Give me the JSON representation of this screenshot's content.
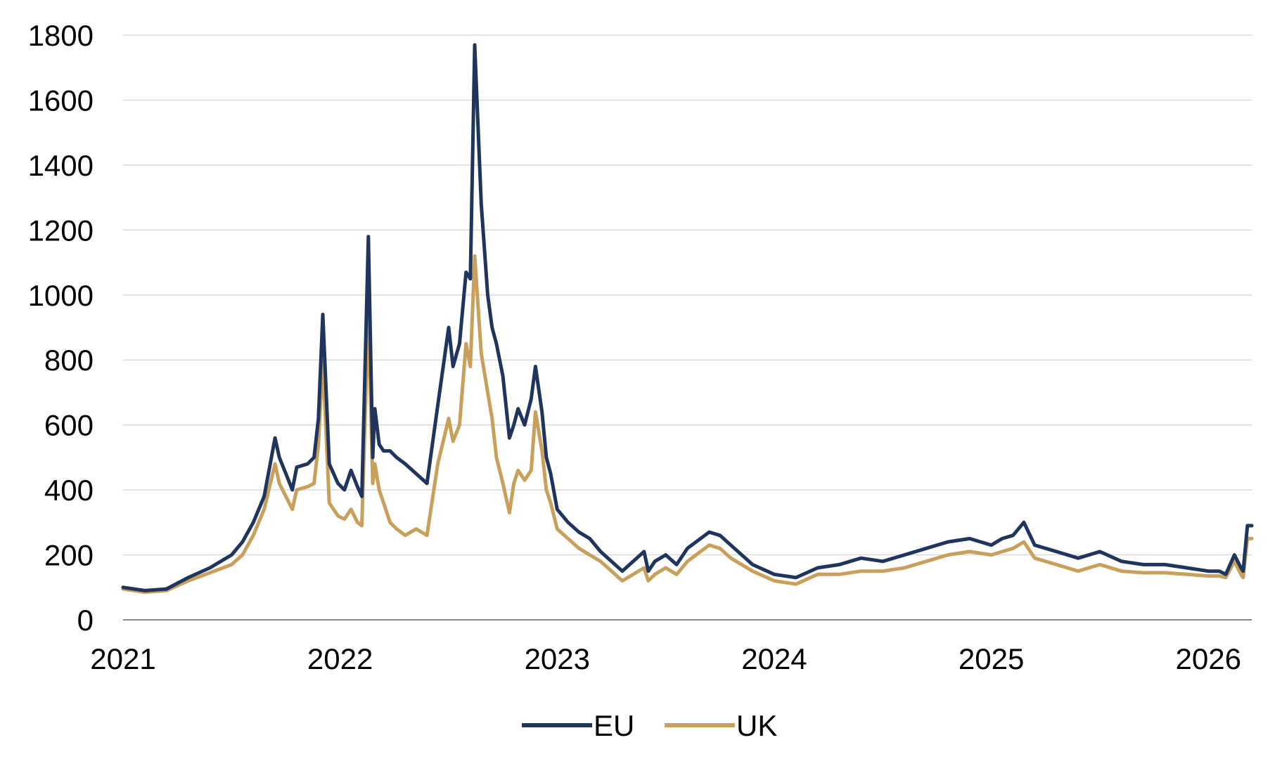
{
  "chart_data": {
    "type": "line",
    "title": "",
    "xlabel": "",
    "ylabel": "",
    "xlim": [
      2021.0,
      2026.2
    ],
    "ylim": [
      0,
      1800
    ],
    "x_ticks": [
      "2021",
      "2022",
      "2023",
      "2024",
      "2025",
      "2026"
    ],
    "y_ticks": [
      "0",
      "200",
      "400",
      "600",
      "800",
      "1000",
      "1200",
      "1400",
      "1600",
      "1800"
    ],
    "grid": true,
    "legend_position": "bottom",
    "x": [
      2021.0,
      2021.1,
      2021.2,
      2021.3,
      2021.4,
      2021.5,
      2021.55,
      2021.6,
      2021.65,
      2021.7,
      2021.72,
      2021.75,
      2021.78,
      2021.8,
      2021.85,
      2021.88,
      2021.9,
      2021.92,
      2021.95,
      2021.97,
      2021.99,
      2022.02,
      2022.05,
      2022.08,
      2022.1,
      2022.13,
      2022.15,
      2022.16,
      2022.18,
      2022.2,
      2022.23,
      2022.26,
      2022.3,
      2022.35,
      2022.4,
      2022.45,
      2022.5,
      2022.52,
      2022.55,
      2022.58,
      2022.6,
      2022.62,
      2022.65,
      2022.68,
      2022.7,
      2022.72,
      2022.75,
      2022.78,
      2022.8,
      2022.82,
      2022.85,
      2022.88,
      2022.9,
      2022.93,
      2022.95,
      2022.97,
      2023.0,
      2023.05,
      2023.1,
      2023.15,
      2023.2,
      2023.3,
      2023.4,
      2023.42,
      2023.45,
      2023.5,
      2023.55,
      2023.6,
      2023.7,
      2023.75,
      2023.8,
      2023.9,
      2024.0,
      2024.1,
      2024.2,
      2024.3,
      2024.4,
      2024.5,
      2024.6,
      2024.7,
      2024.8,
      2024.9,
      2025.0,
      2025.05,
      2025.1,
      2025.15,
      2025.2,
      2025.3,
      2025.4,
      2025.45,
      2025.5,
      2025.6,
      2025.7,
      2025.8,
      2025.9,
      2026.0,
      2026.05,
      2026.08,
      2026.12,
      2026.15,
      2026.16,
      2026.18,
      2026.2
    ],
    "series": [
      {
        "name": "EU",
        "color": "#1f355e",
        "values": [
          100,
          90,
          95,
          130,
          160,
          200,
          240,
          300,
          380,
          560,
          500,
          450,
          400,
          470,
          480,
          500,
          620,
          940,
          480,
          450,
          420,
          400,
          460,
          410,
          380,
          1180,
          500,
          650,
          540,
          520,
          520,
          500,
          480,
          450,
          420,
          660,
          900,
          780,
          850,
          1070,
          1050,
          1770,
          1280,
          1000,
          900,
          850,
          750,
          560,
          600,
          650,
          600,
          680,
          780,
          640,
          500,
          450,
          340,
          300,
          270,
          250,
          210,
          150,
          210,
          150,
          180,
          200,
          170,
          220,
          270,
          260,
          230,
          170,
          140,
          130,
          160,
          170,
          190,
          180,
          200,
          220,
          240,
          250,
          230,
          250,
          260,
          300,
          230,
          210,
          190,
          200,
          210,
          180,
          170,
          170,
          160,
          150,
          150,
          140,
          200,
          160,
          150,
          290,
          290
        ]
      },
      {
        "name": "UK",
        "color": "#c9a05b",
        "values": [
          95,
          85,
          90,
          120,
          145,
          170,
          200,
          260,
          340,
          480,
          420,
          380,
          340,
          400,
          410,
          420,
          540,
          800,
          360,
          340,
          320,
          310,
          340,
          300,
          290,
          950,
          420,
          480,
          400,
          360,
          300,
          280,
          260,
          280,
          260,
          480,
          620,
          550,
          600,
          850,
          780,
          1120,
          820,
          700,
          620,
          500,
          420,
          330,
          420,
          460,
          430,
          460,
          640,
          520,
          400,
          360,
          280,
          250,
          220,
          200,
          180,
          120,
          160,
          120,
          140,
          160,
          140,
          180,
          230,
          220,
          190,
          150,
          120,
          110,
          140,
          140,
          150,
          150,
          160,
          180,
          200,
          210,
          200,
          210,
          220,
          240,
          190,
          170,
          150,
          160,
          170,
          150,
          145,
          145,
          140,
          135,
          135,
          130,
          180,
          140,
          130,
          250,
          250
        ]
      }
    ]
  }
}
